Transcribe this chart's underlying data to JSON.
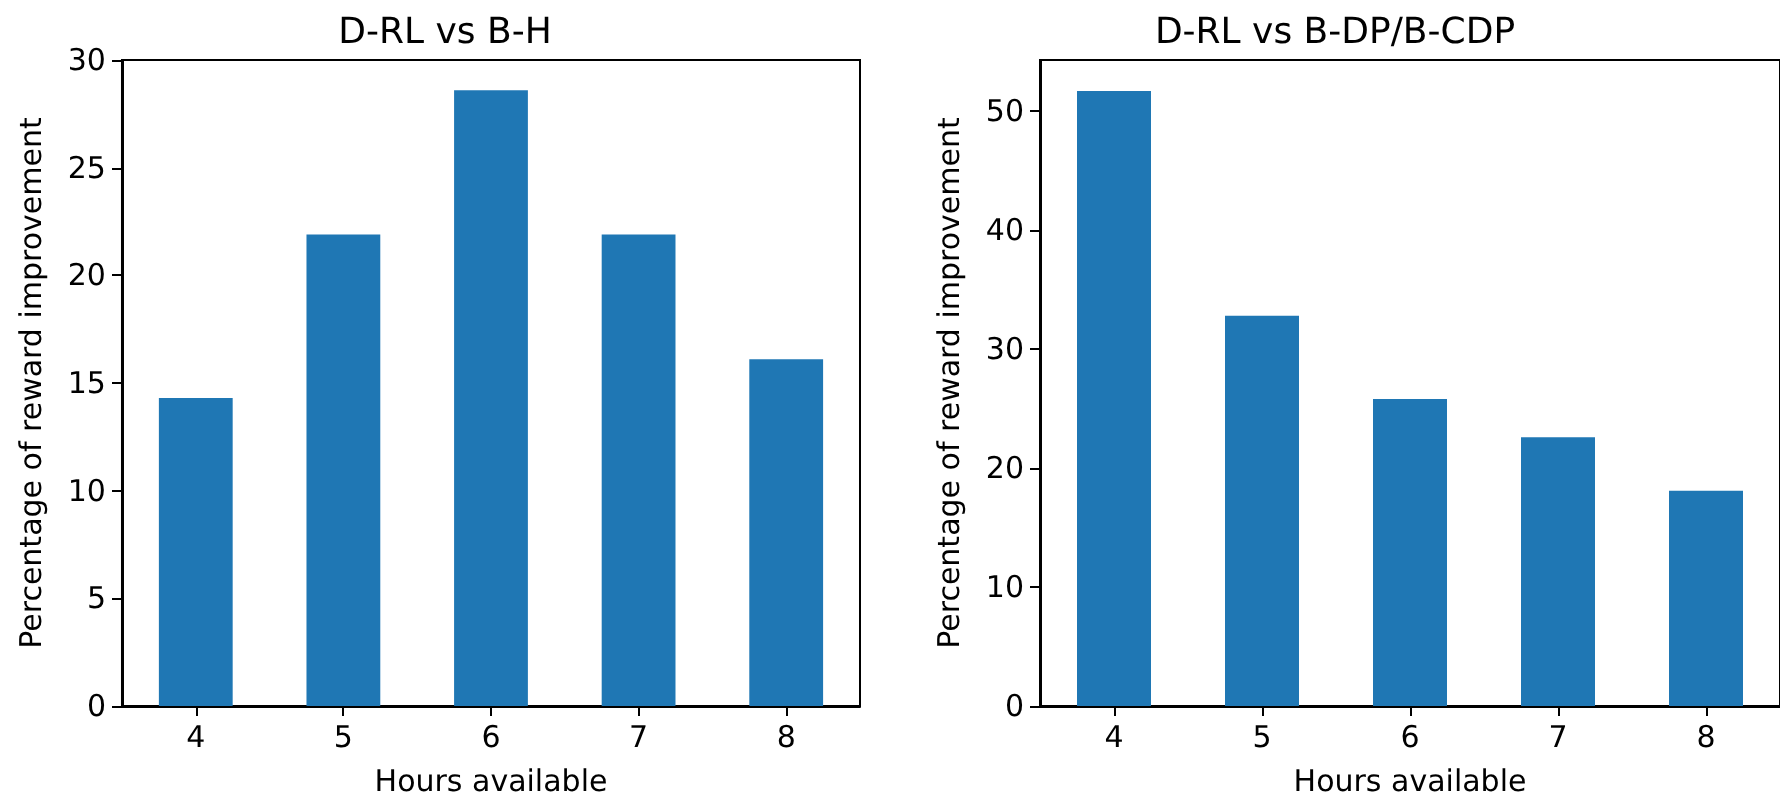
{
  "chart_data": [
    {
      "type": "bar",
      "title": "D-RL vs B-H",
      "xlabel": "Hours available",
      "ylabel": "Percentage of reward improvement",
      "categories": [
        "4",
        "5",
        "6",
        "7",
        "8"
      ],
      "values": [
        14.3,
        21.9,
        28.6,
        21.9,
        16.1
      ],
      "color": "#1f77b4",
      "ylim": [
        0,
        30
      ],
      "yticks": [
        0,
        5,
        10,
        15,
        20,
        25,
        30
      ]
    },
    {
      "type": "bar",
      "title": "D-RL vs B-DP/B-CDP",
      "xlabel": "Hours available",
      "ylabel": "Percentage of reward improvement",
      "categories": [
        "4",
        "5",
        "6",
        "7",
        "8"
      ],
      "values": [
        51.7,
        32.8,
        25.8,
        22.6,
        18.1
      ],
      "color": "#1f77b4",
      "ylim": [
        0,
        54.3
      ],
      "yticks": [
        0,
        10,
        20,
        30,
        40,
        50
      ]
    }
  ]
}
